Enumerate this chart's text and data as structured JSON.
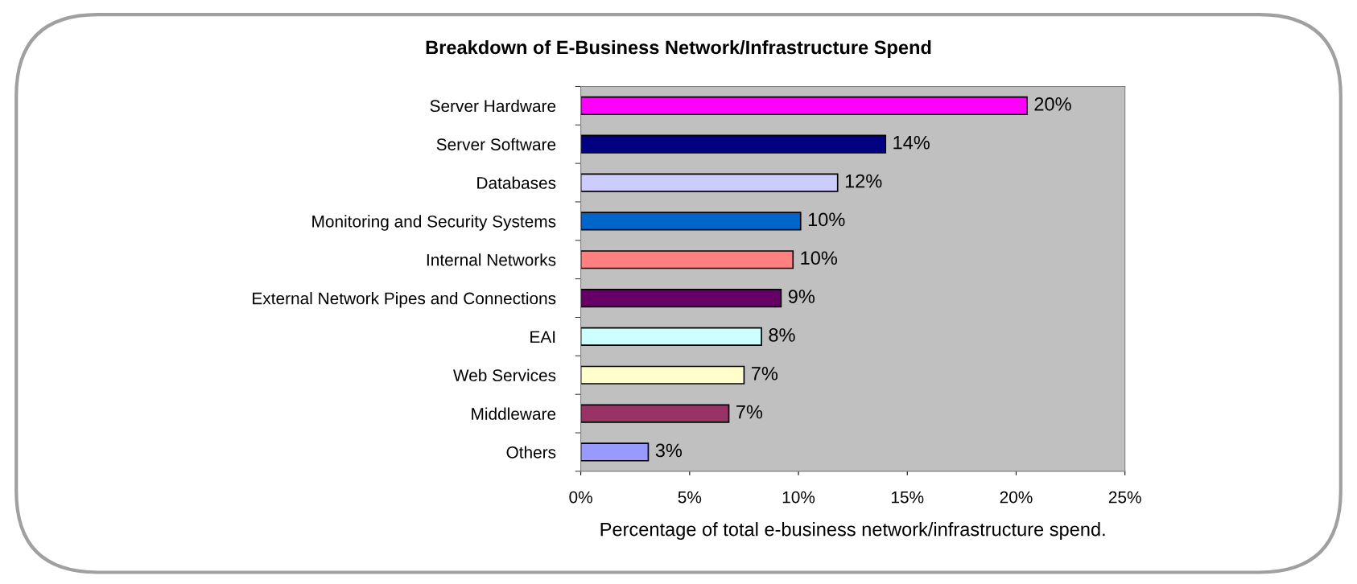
{
  "chart_data": {
    "type": "bar",
    "orientation": "horizontal",
    "title": "Breakdown of E-Business Network/Infrastructure Spend",
    "xlabel": "Percentage of total e-business network/infrastructure spend.",
    "categories": [
      "Server Hardware",
      "Server Software",
      "Databases",
      "Monitoring and Security Systems",
      "Internal Networks",
      "External Network Pipes and Connections",
      "EAI",
      "Web Services",
      "Middleware",
      "Others"
    ],
    "values": [
      20.5,
      14.0,
      11.8,
      10.1,
      9.75,
      9.2,
      8.3,
      7.5,
      6.8,
      3.1
    ],
    "value_labels": [
      "20%",
      "14%",
      "12%",
      "10%",
      "10%",
      "9%",
      "8%",
      "7%",
      "7%",
      "3%"
    ],
    "colors": [
      "#ff00ff",
      "#000080",
      "#ccccff",
      "#0066cc",
      "#ff8080",
      "#660066",
      "#ccffff",
      "#ffffcc",
      "#993366",
      "#9999ff"
    ],
    "xlim": [
      0,
      25
    ],
    "xticks": [
      {
        "value": 0,
        "label": "0%"
      },
      {
        "value": 5,
        "label": "5%"
      },
      {
        "value": 10,
        "label": "10%"
      },
      {
        "value": 15,
        "label": "15%"
      },
      {
        "value": 20,
        "label": "20%"
      },
      {
        "value": 25,
        "label": "25%"
      }
    ],
    "grid": false,
    "legend": false
  }
}
